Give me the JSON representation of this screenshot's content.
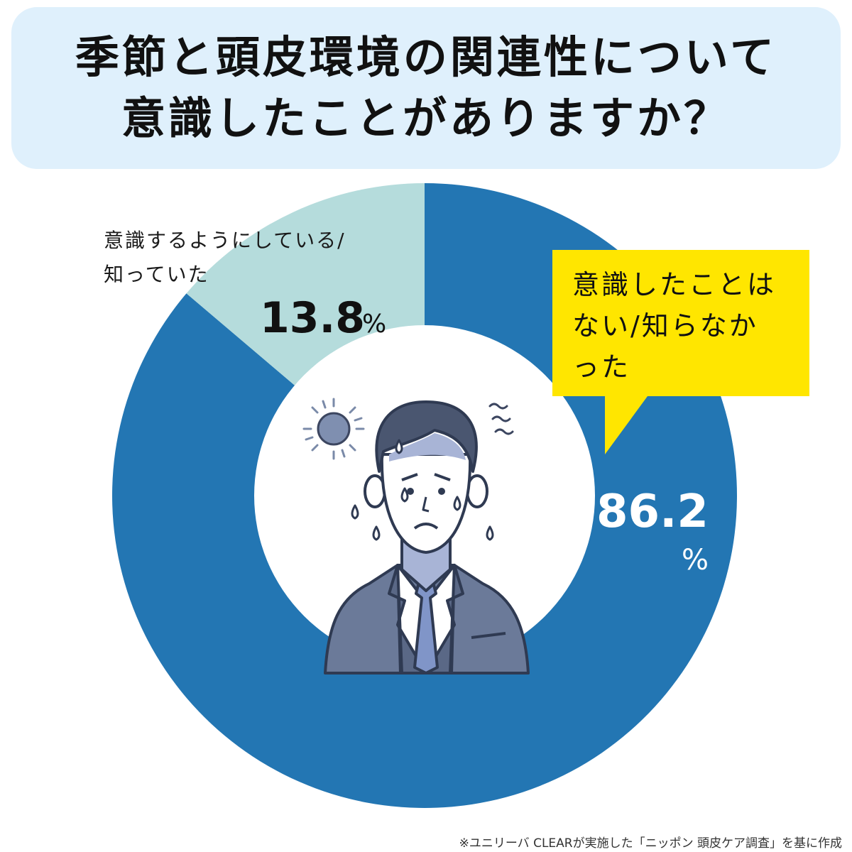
{
  "title": {
    "line1": "季節と頭皮環境の関連性について",
    "line2": "意識したことがありますか？"
  },
  "colors": {
    "title_bg": "#dff0fc",
    "major_slice": "#2376b3",
    "minor_slice": "#b5dcdc",
    "callout": "#ffe600"
  },
  "chart_data": {
    "type": "pie",
    "style": "donut",
    "categories": [
      "意識したことはない/知らなかった",
      "意識するようにしている/知っていた"
    ],
    "values": [
      86.2,
      13.8
    ],
    "unit": "%",
    "labels": {
      "minor_line1": "意識するようにしている/",
      "minor_line2": "知っていた",
      "minor_value": "13.8",
      "minor_unit": "%",
      "major_line1": "意識したことは",
      "major_line2": "ない/知らなか",
      "major_line3": "った",
      "major_value": "86.2",
      "major_unit": "%"
    }
  },
  "illustration": {
    "icon": "sweating-businessman-icon",
    "sun_icon": "sun-icon"
  },
  "source": "※ユニリーバ CLEARが実施した「ニッポン 頭皮ケア調査」を基に作成"
}
